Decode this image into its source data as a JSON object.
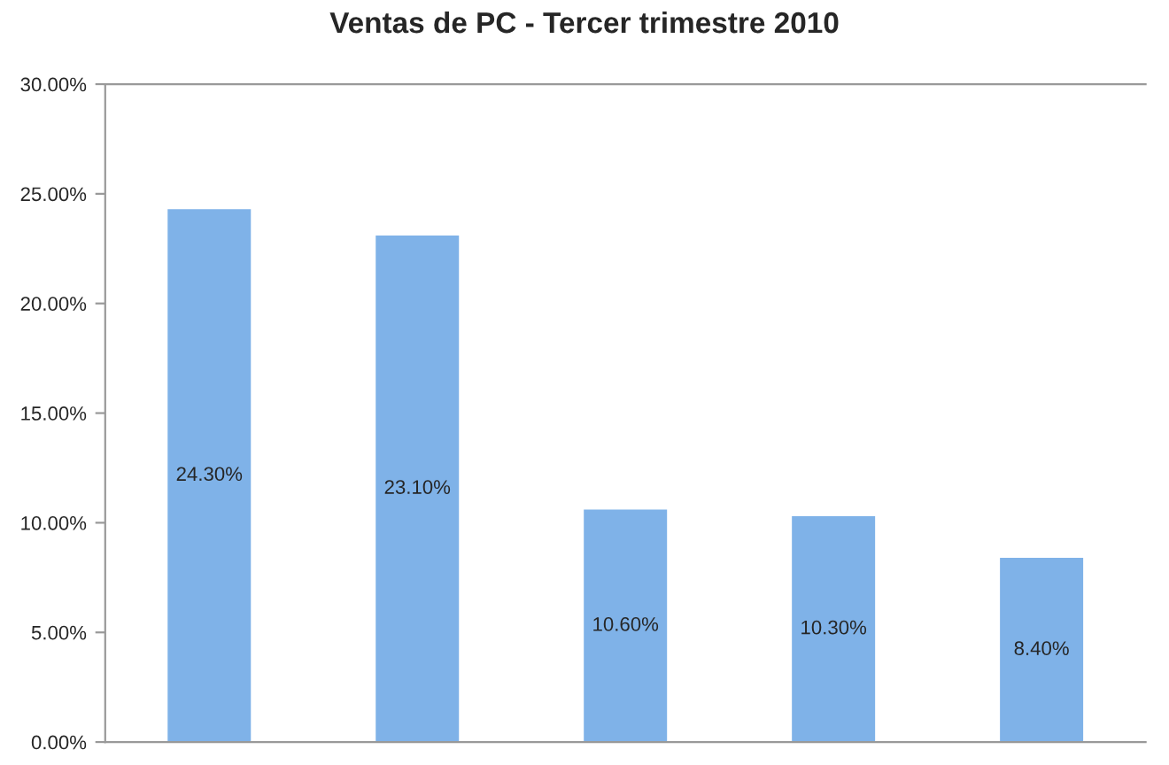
{
  "chart_data": {
    "type": "bar",
    "title": "Ventas de PC - Tercer trimestre 2010",
    "categories": [
      null,
      null,
      null,
      null,
      null
    ],
    "values": [
      24.3,
      23.1,
      10.6,
      10.3,
      8.4
    ],
    "value_labels": [
      "24.30%",
      "23.10%",
      "10.60%",
      "10.30%",
      "8.40%"
    ],
    "color": "#7fb2e8",
    "ylim": [
      0,
      30
    ],
    "yticks": [
      {
        "value": 0,
        "label": "0.00%"
      },
      {
        "value": 5,
        "label": "5.00%"
      },
      {
        "value": 10,
        "label": "10.00%"
      },
      {
        "value": 15,
        "label": "15.00%"
      },
      {
        "value": 20,
        "label": "20.00%"
      },
      {
        "value": 25,
        "label": "25.00%"
      },
      {
        "value": 30,
        "label": "30.00%"
      }
    ],
    "grid": false
  }
}
